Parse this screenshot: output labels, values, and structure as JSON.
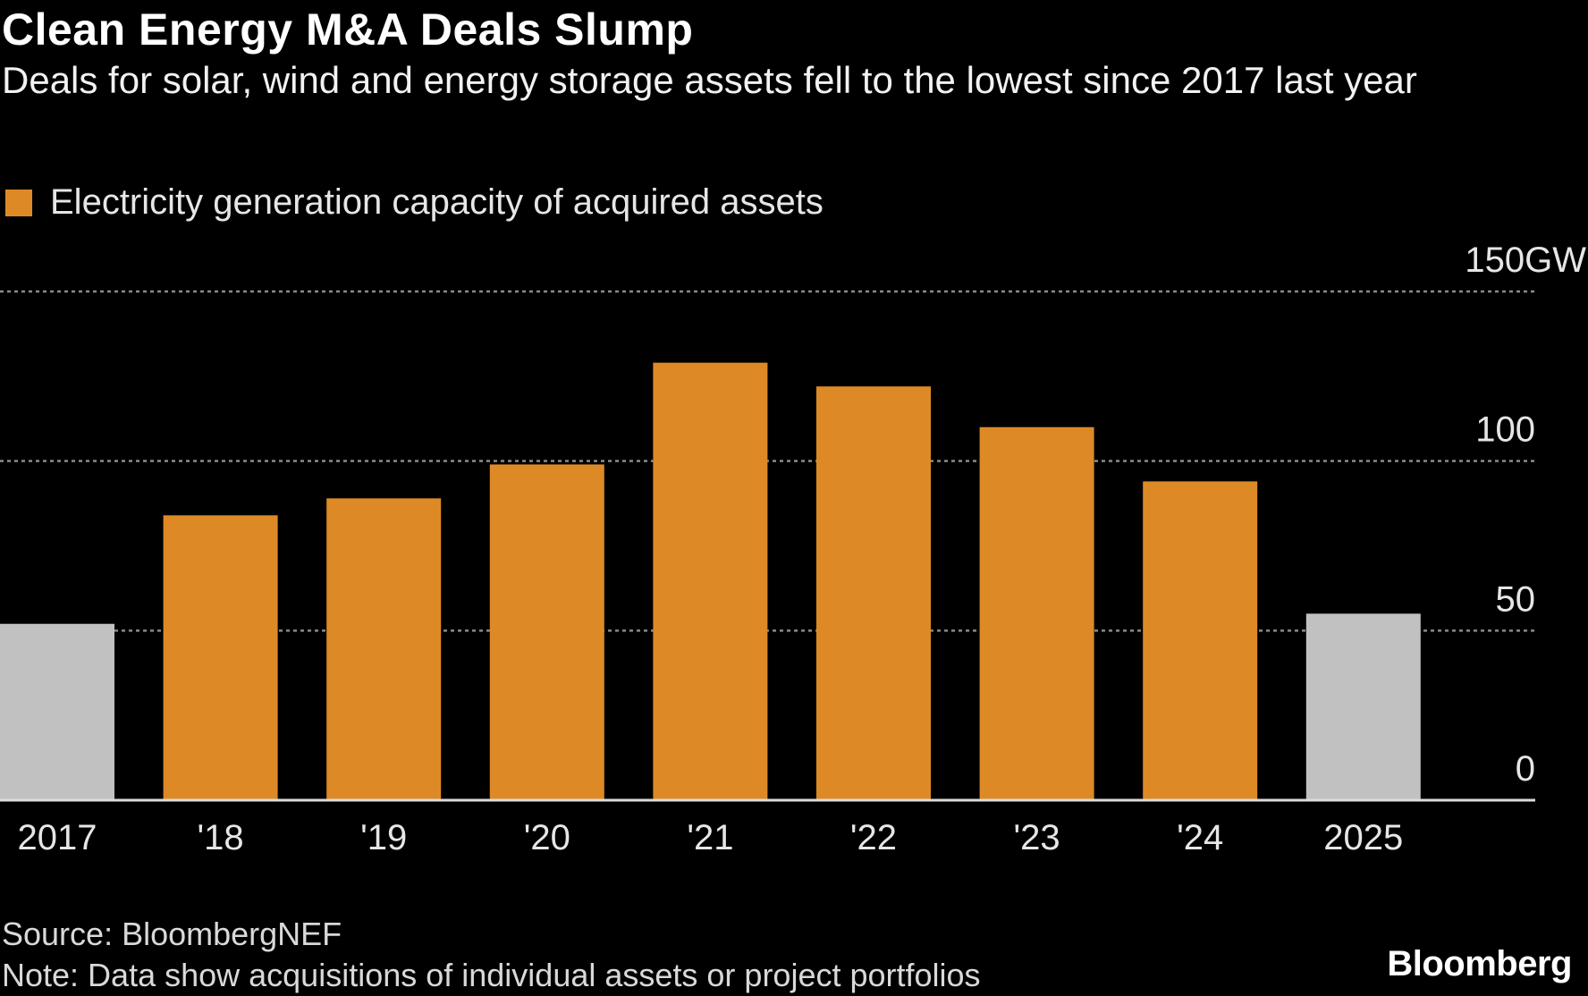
{
  "title": "Clean Energy M&A Deals Slump",
  "subtitle": "Deals for solar, wind and energy storage assets fell to the lowest since 2017 last year",
  "source": "Source: BloombergNEF",
  "note": "Note: Data show acquisitions of individual assets or project portfolios",
  "logo": "Bloomberg",
  "chart_data": {
    "type": "bar",
    "title": "Clean Energy M&A Deals Slump",
    "legend": [
      {
        "name": "Electricity generation capacity of acquired assets",
        "color": "#dd8a26"
      }
    ],
    "categories": [
      "2017",
      "'18",
      "'19",
      "'20",
      "'21",
      "'22",
      "'23",
      "'24",
      "2025"
    ],
    "values": [
      52,
      84,
      89,
      99,
      129,
      122,
      110,
      94,
      55
    ],
    "colors": [
      "#c1c1c1",
      "#dd8a26",
      "#dd8a26",
      "#dd8a26",
      "#dd8a26",
      "#dd8a26",
      "#dd8a26",
      "#dd8a26",
      "#c1c1c1"
    ],
    "yticks": [
      0,
      50,
      100,
      150
    ],
    "ytick_labels": [
      "0",
      "50",
      "100",
      "150GW"
    ],
    "ylim": [
      0,
      150
    ],
    "grid": true,
    "legend_placement": "top-left",
    "y_axis_side": "right"
  }
}
